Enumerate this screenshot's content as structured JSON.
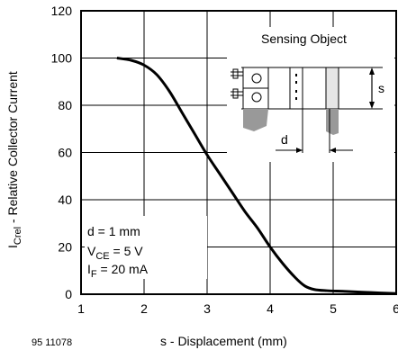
{
  "chart_data": {
    "type": "line",
    "title": "",
    "xlabel": "s - Displacement (mm)",
    "ylabel_main": "I",
    "ylabel_sub": "Crel",
    "ylabel_rest": " - Relative Collector Current",
    "xlim": [
      1,
      6
    ],
    "ylim": [
      0,
      120
    ],
    "xticks": [
      "1",
      "2",
      "3",
      "4",
      "5",
      "6"
    ],
    "yticks": [
      "0",
      "20",
      "40",
      "60",
      "80",
      "100",
      "120"
    ],
    "grid": true,
    "series": [
      {
        "x": [
          1.57,
          1.8,
          2.0,
          2.2,
          2.4,
          2.6,
          2.8,
          3.0,
          3.2,
          3.4,
          3.6,
          3.8,
          4.0,
          4.2,
          4.4,
          4.55,
          4.7,
          4.9,
          5.2,
          5.6,
          6.0
        ],
        "y": [
          100,
          99,
          97,
          93,
          86,
          77,
          68,
          59,
          51,
          43,
          35,
          28,
          20,
          13,
          7,
          3.5,
          2,
          1.5,
          1.2,
          0.7,
          0.3
        ]
      }
    ],
    "annotations": {
      "d_line": "d = 1 mm",
      "vce_main": "V",
      "vce_sub": "CE",
      "vce_rest": " = 5 V",
      "if_main": "I",
      "if_sub": "F",
      "if_rest": " = 20 mA",
      "figure_code": "95 11078",
      "sensing_object": "Sensing Object",
      "s_label": "s",
      "d_label": "d"
    }
  }
}
